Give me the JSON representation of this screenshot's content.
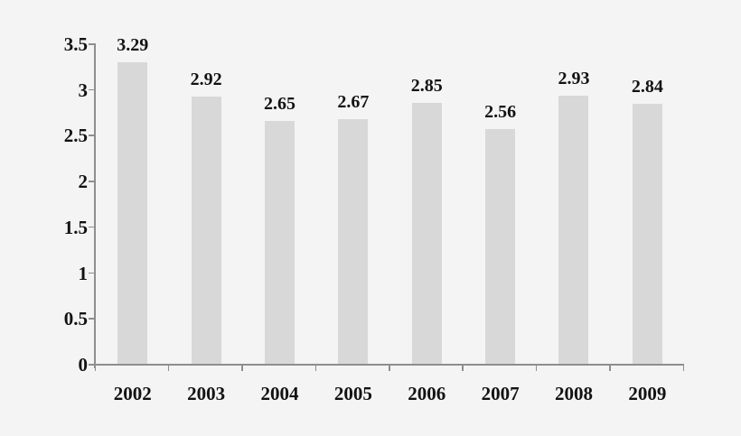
{
  "chart_data": {
    "type": "bar",
    "title": "",
    "xlabel": "",
    "ylabel": "",
    "categories": [
      "2002",
      "2003",
      "2004",
      "2005",
      "2006",
      "2007",
      "2008",
      "2009"
    ],
    "values": [
      3.29,
      2.92,
      2.65,
      2.67,
      2.85,
      2.56,
      2.93,
      2.84
    ],
    "value_labels": [
      "3.29",
      "2.92",
      "2.65",
      "2.67",
      "2.85",
      "2.56",
      "2.93",
      "2.84"
    ],
    "ylim": [
      0,
      3.5
    ],
    "ytick_step": 0.5,
    "ytick_labels": [
      "0",
      "0.5",
      "1",
      "1.5",
      "2",
      "2.5",
      "3",
      "3.5"
    ],
    "grid": false,
    "legend": false,
    "colors": {
      "background": "#f4f4f4",
      "bar_fill": "#d8d8d8",
      "axis": "#8e8e8e",
      "text": "#121212"
    }
  }
}
